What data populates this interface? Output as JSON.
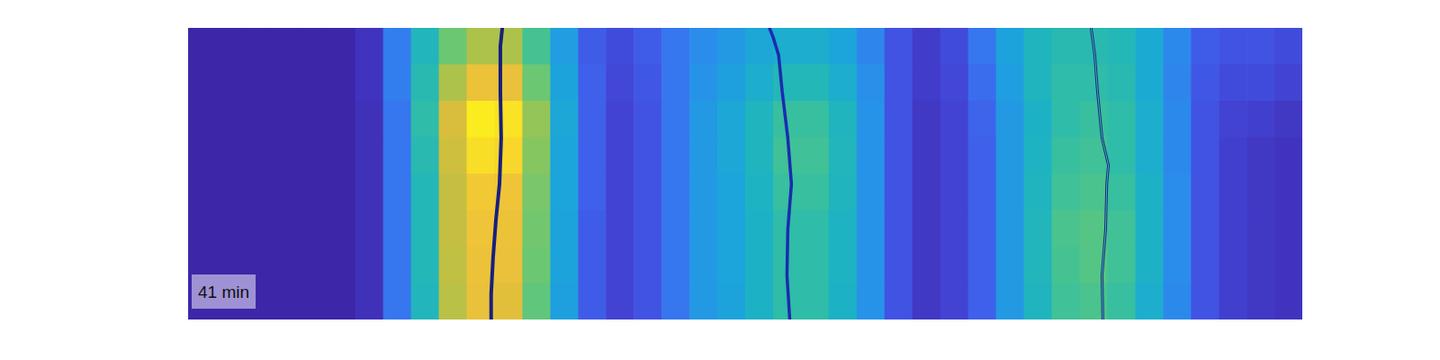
{
  "chart_data": {
    "type": "heatmap",
    "color": "parula",
    "zlim": [
      0,
      1
    ],
    "tick_labels": false,
    "xlim": [
      0,
      40
    ],
    "ylim": [
      0,
      8
    ],
    "annotation": "41 min",
    "cells": [
      [
        0,
        0,
        0,
        0,
        0,
        0,
        0.04,
        0.22,
        0.45,
        0.62,
        0.72,
        0.72,
        0.55,
        0.32,
        0.14,
        0.1,
        0.14,
        0.2,
        0.26,
        0.3,
        0.36,
        0.4,
        0.4,
        0.35,
        0.24,
        0.12,
        0.06,
        0.1,
        0.2,
        0.34,
        0.44,
        0.48,
        0.48,
        0.46,
        0.38,
        0.25,
        0.14,
        0.12,
        0.12,
        0.1
      ],
      [
        0,
        0,
        0,
        0,
        0,
        0,
        0.04,
        0.22,
        0.48,
        0.72,
        0.85,
        0.84,
        0.62,
        0.34,
        0.15,
        0.09,
        0.13,
        0.2,
        0.28,
        0.33,
        0.4,
        0.46,
        0.46,
        0.4,
        0.27,
        0.12,
        0.06,
        0.09,
        0.18,
        0.32,
        0.44,
        0.5,
        0.5,
        0.48,
        0.38,
        0.24,
        0.13,
        0.1,
        0.1,
        0.08
      ],
      [
        0,
        0,
        0,
        0,
        0,
        0,
        0.03,
        0.2,
        0.5,
        0.8,
        0.97,
        0.95,
        0.68,
        0.36,
        0.15,
        0.08,
        0.12,
        0.2,
        0.3,
        0.36,
        0.44,
        0.52,
        0.52,
        0.44,
        0.28,
        0.12,
        0.05,
        0.08,
        0.16,
        0.3,
        0.42,
        0.5,
        0.52,
        0.5,
        0.4,
        0.25,
        0.12,
        0.08,
        0.07,
        0.05
      ],
      [
        0,
        0,
        0,
        0,
        0,
        0,
        0.03,
        0.2,
        0.48,
        0.78,
        0.94,
        0.92,
        0.66,
        0.35,
        0.15,
        0.08,
        0.12,
        0.2,
        0.3,
        0.36,
        0.44,
        0.54,
        0.54,
        0.45,
        0.28,
        0.12,
        0.05,
        0.08,
        0.15,
        0.3,
        0.43,
        0.52,
        0.54,
        0.5,
        0.4,
        0.25,
        0.12,
        0.07,
        0.05,
        0.04
      ],
      [
        0,
        0,
        0,
        0,
        0,
        0,
        0.03,
        0.2,
        0.46,
        0.76,
        0.88,
        0.86,
        0.64,
        0.35,
        0.15,
        0.08,
        0.12,
        0.2,
        0.3,
        0.35,
        0.43,
        0.52,
        0.52,
        0.44,
        0.28,
        0.12,
        0.05,
        0.08,
        0.15,
        0.3,
        0.44,
        0.54,
        0.56,
        0.52,
        0.42,
        0.26,
        0.12,
        0.07,
        0.05,
        0.04
      ],
      [
        0,
        0,
        0,
        0,
        0,
        0,
        0.03,
        0.2,
        0.46,
        0.76,
        0.86,
        0.85,
        0.63,
        0.34,
        0.14,
        0.08,
        0.12,
        0.2,
        0.3,
        0.35,
        0.42,
        0.5,
        0.5,
        0.43,
        0.28,
        0.12,
        0.05,
        0.08,
        0.15,
        0.3,
        0.45,
        0.56,
        0.58,
        0.54,
        0.42,
        0.26,
        0.12,
        0.07,
        0.05,
        0.04
      ],
      [
        0,
        0,
        0,
        0,
        0,
        0,
        0.03,
        0.2,
        0.46,
        0.75,
        0.85,
        0.84,
        0.62,
        0.34,
        0.14,
        0.08,
        0.12,
        0.2,
        0.3,
        0.35,
        0.42,
        0.5,
        0.5,
        0.43,
        0.28,
        0.12,
        0.05,
        0.08,
        0.15,
        0.3,
        0.45,
        0.55,
        0.58,
        0.54,
        0.42,
        0.26,
        0.12,
        0.07,
        0.05,
        0.04
      ],
      [
        0,
        0,
        0,
        0,
        0,
        0,
        0.03,
        0.2,
        0.45,
        0.74,
        0.84,
        0.82,
        0.6,
        0.33,
        0.14,
        0.08,
        0.12,
        0.2,
        0.3,
        0.34,
        0.42,
        0.5,
        0.5,
        0.42,
        0.28,
        0.12,
        0.05,
        0.08,
        0.15,
        0.3,
        0.44,
        0.54,
        0.56,
        0.52,
        0.4,
        0.25,
        0.12,
        0.07,
        0.05,
        0.04
      ]
    ],
    "series": [
      {
        "type": "line",
        "color": "#17207e",
        "line_style": "bold",
        "x": [
          11.28,
          11.21,
          11.21,
          11.24,
          11.18,
          11.05,
          10.95,
          10.88,
          10.88
        ],
        "values": [
          0,
          0.5,
          1.76,
          3.02,
          4.28,
          5.28,
          6.29,
          7.3,
          8
        ]
      },
      {
        "type": "line",
        "color": "#1b2bb0",
        "line_style": "bold",
        "x": [
          20.87,
          21.0,
          21.2,
          21.33,
          21.53,
          21.66,
          21.53,
          21.5,
          21.6
        ],
        "values": [
          0,
          0.25,
          0.75,
          1.76,
          3.02,
          4.28,
          5.53,
          6.79,
          8
        ]
      },
      {
        "type": "line",
        "color": "#1c2a6e",
        "line_style": "thin",
        "x": [
          32.42,
          32.55,
          32.65,
          32.81,
          33.04,
          32.98,
          32.94,
          32.81,
          32.84
        ],
        "values": [
          0,
          0.75,
          1.76,
          3.02,
          3.77,
          4.28,
          5.53,
          6.79,
          8
        ]
      }
    ]
  }
}
